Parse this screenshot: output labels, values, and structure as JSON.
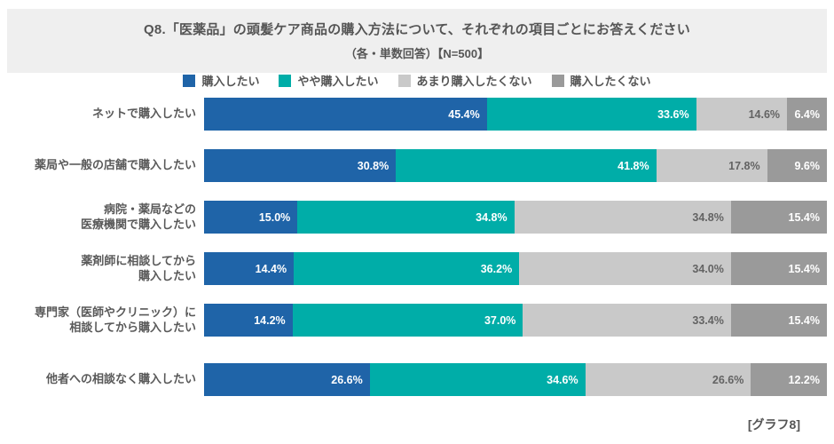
{
  "header": {
    "title": "Q8.「医薬品」の頭髪ケア商品の購入方法について、それぞれの項目ごとにお答えください",
    "subtitle": "（各・単数回答）【N=500】"
  },
  "footer": {
    "note": "[グラフ8]"
  },
  "colors": {
    "header_bg": "#efefef",
    "series": [
      "#1f64a8",
      "#00ada8",
      "#c9c9c9",
      "#9a9a9a"
    ],
    "label_on_dark": "#ffffff",
    "label_on_light": "#636363",
    "text": "#555555"
  },
  "chart_data": {
    "type": "bar",
    "orientation": "horizontal",
    "stacked": true,
    "unit": "%",
    "xlim": [
      0,
      100
    ],
    "grid": false,
    "legend_position": "top",
    "title": "Q8.「医薬品」の頭髪ケア商品の購入方法について、それぞれの項目ごとにお答えください",
    "subtitle": "（各・単数回答）【N=500】",
    "categories": [
      "ネットで購入したい",
      "薬局や一般の店舗で購入したい",
      "病院・薬局などの\n医療機関で購入したい",
      "薬剤師に相談してから\n購入したい",
      "専門家（医師やクリニック）に\n相談してから購入したい",
      "他者への相談なく購入したい"
    ],
    "series": [
      {
        "name": "購入したい",
        "values": [
          45.4,
          30.8,
          15.0,
          14.4,
          14.2,
          26.6
        ]
      },
      {
        "name": "やや購入したい",
        "values": [
          33.6,
          41.8,
          34.8,
          36.2,
          37.0,
          34.6
        ]
      },
      {
        "name": "あまり購入したくない",
        "values": [
          14.6,
          17.8,
          34.8,
          34.0,
          33.4,
          26.6
        ]
      },
      {
        "name": "購入したくない",
        "values": [
          6.4,
          9.6,
          15.4,
          15.4,
          15.4,
          12.2
        ]
      }
    ]
  }
}
